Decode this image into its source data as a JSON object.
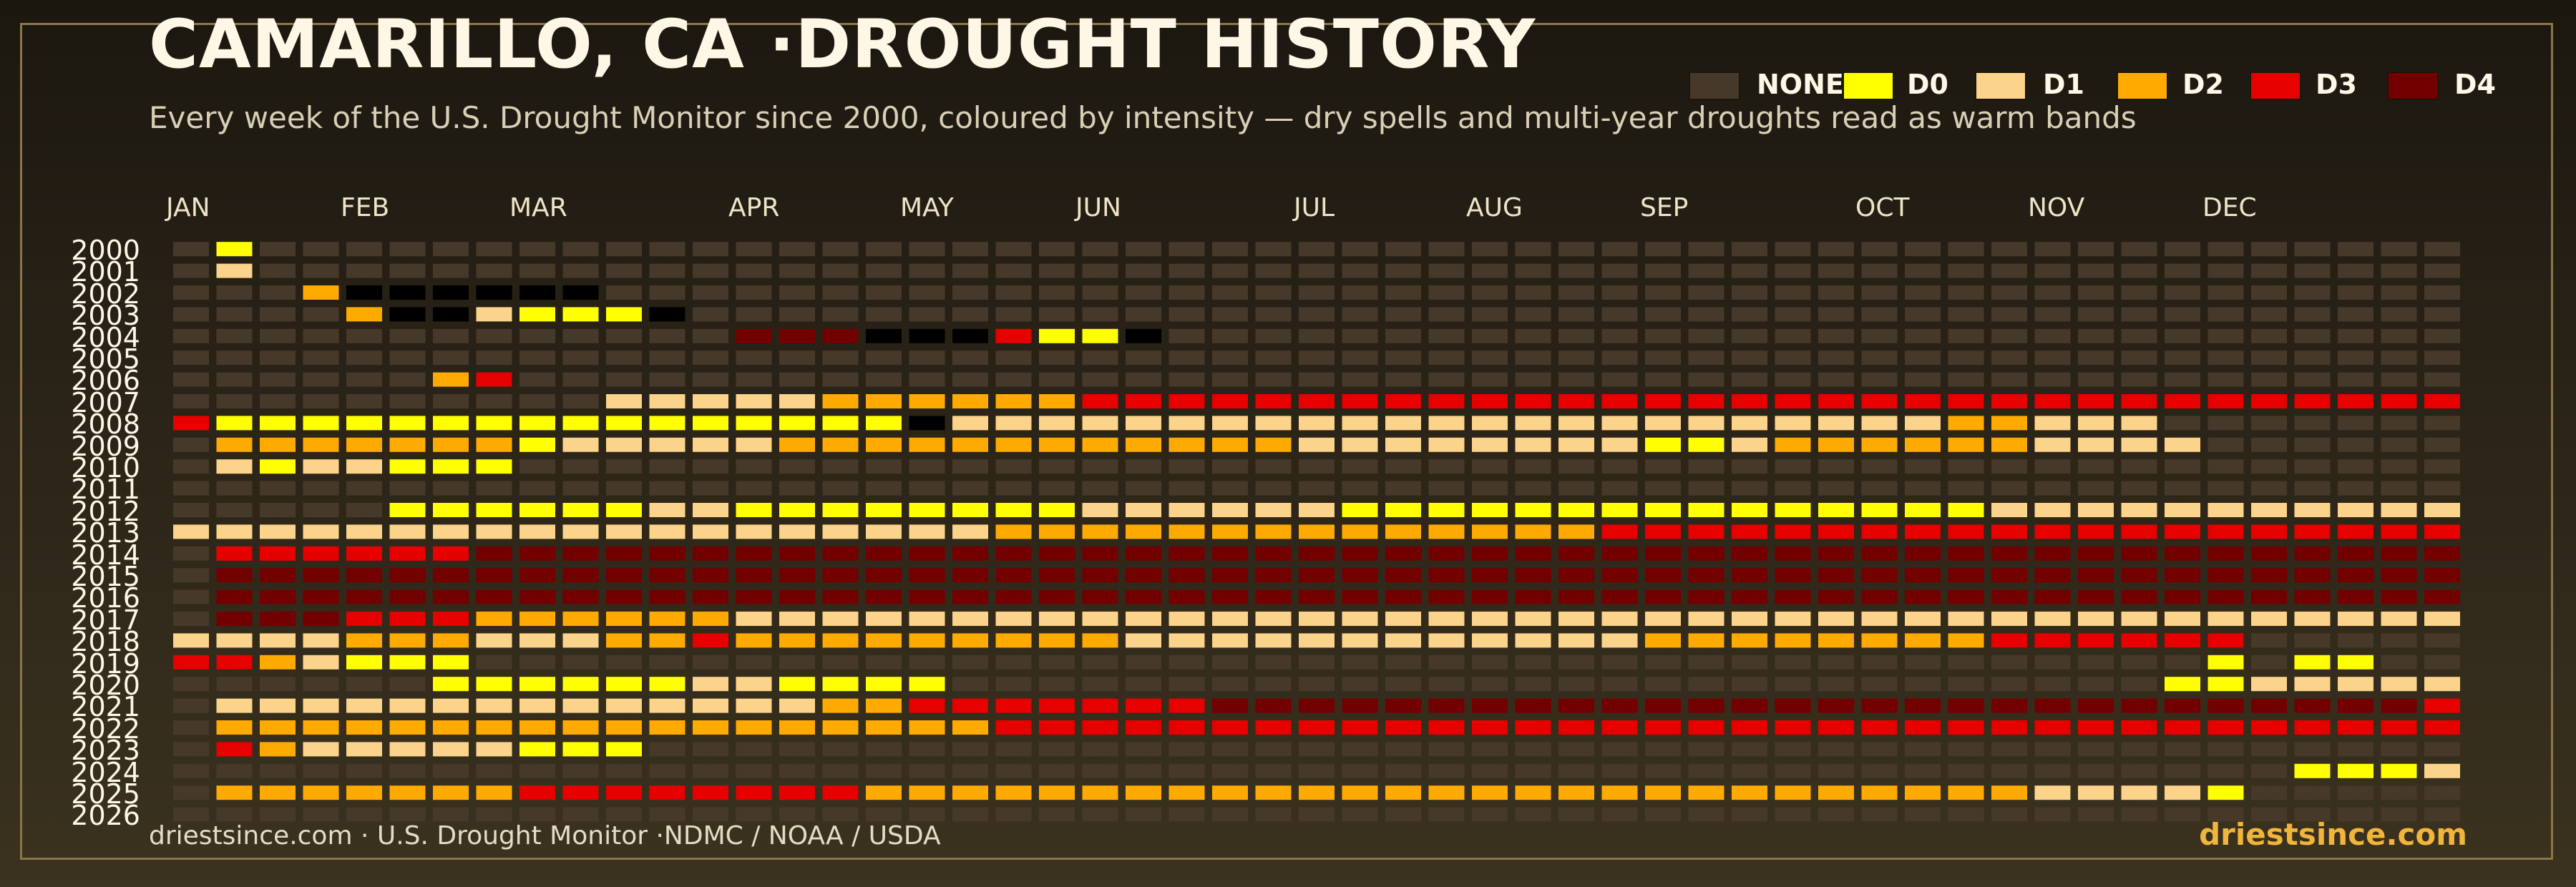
{
  "title": "CAMARILLO, CA ·DROUGHT HISTORY",
  "subtitle": "Every week of the U.S. Drought Monitor since 2000, coloured by intensity — dry spells and multi-year droughts read as warm bands",
  "footer_left": "driestsince.com  · U.S. Drought Monitor ·NDMC / NOAA / USDA",
  "footer_right": "driestsince.com",
  "legend": [
    {
      "label": "NONE",
      "color": "#46392a"
    },
    {
      "label": "D0",
      "color": "#ffff00"
    },
    {
      "label": "D1",
      "color": "#fcd38a"
    },
    {
      "label": "D2",
      "color": "#ffaa00"
    },
    {
      "label": "D3",
      "color": "#e60000"
    },
    {
      "label": "D4",
      "color": "#730000"
    }
  ],
  "chart_data": {
    "type": "heatmap",
    "title": "CAMARILLO, CA ·DROUGHT HISTORY",
    "x_months": [
      "JAN",
      "FEB",
      "MAR",
      "APR",
      "MAY",
      "JUN",
      "JUL",
      "AUG",
      "SEP",
      "OCT",
      "NOV",
      "DEC"
    ],
    "weeks_per_year": 53,
    "y_years": [
      "2000",
      "2001",
      "2002",
      "2003",
      "2004",
      "2005",
      "2006",
      "2007",
      "2008",
      "2009",
      "2010",
      "2011",
      "2012",
      "2013",
      "2014",
      "2015",
      "2016",
      "2017",
      "2018",
      "2019",
      "2020",
      "2021",
      "2022",
      "2023",
      "2024",
      "2025",
      "2026"
    ],
    "categories": [
      "NONE",
      "D0",
      "D1",
      "D2",
      "D3",
      "D4"
    ],
    "rows": [
      {
        "year": "2000",
        "runs": [
          [
            0,
            1
          ],
          [
            1,
            1
          ],
          [
            9,
            0
          ]
        ]
      },
      {
        "year": "2001",
        "runs": [
          [
            0,
            1
          ],
          [
            2,
            1
          ]
        ]
      },
      {
        "year": "2002",
        "runs": [
          [
            0,
            3
          ],
          [
            3,
            1
          ],
          [
            22,
            2
          ],
          [
            8,
            3
          ],
          [
            6,
            1
          ],
          [
            5,
            0
          ],
          [
            1,
            0
          ]
        ]
      },
      {
        "year": "2003",
        "runs": [
          [
            0,
            4
          ],
          [
            3,
            1
          ],
          [
            3,
            0
          ],
          [
            8,
            1
          ],
          [
            1,
            0
          ],
          [
            26,
            1
          ],
          [
            2,
            1
          ],
          [
            1,
            2
          ],
          [
            1,
            1
          ],
          [
            6,
            1
          ]
        ]
      },
      {
        "year": "2004",
        "runs": [
          [
            0,
            13
          ],
          [
            5,
            1
          ],
          [
            5,
            2
          ],
          [
            10,
            1
          ],
          [
            8,
            2
          ],
          [
            4,
            1
          ],
          [
            1,
            2
          ],
          [
            8,
            1
          ],
          [
            1,
            0
          ]
        ]
      },
      {
        "year": "2005",
        "runs": [
          [
            0,
            53
          ]
        ]
      },
      {
        "year": "2006",
        "runs": [
          [
            0,
            6
          ],
          [
            3,
            1
          ],
          [
            40,
            0
          ],
          [
            4,
            1
          ]
        ]
      },
      {
        "year": "2007",
        "runs": [
          [
            0,
            10
          ],
          [
            2,
            5
          ],
          [
            3,
            6
          ],
          [
            4,
            35
          ],
          [
            4
          ]
        ]
      },
      {
        "year": "2008",
        "runs": [
          [
            4,
            1
          ],
          [
            1,
            15
          ],
          [
            1,
            1
          ],
          [
            7,
            1
          ],
          [
            2,
            17
          ],
          [
            2,
            6
          ],
          [
            3,
            2
          ],
          [
            2,
            1
          ],
          [
            2
          ]
        ]
      },
      {
        "year": "2009",
        "runs": [
          [
            0,
            1
          ],
          [
            3,
            7
          ],
          [
            1,
            1
          ],
          [
            2,
            5
          ],
          [
            3,
            12
          ],
          [
            2,
            8
          ],
          [
            1,
            2
          ],
          [
            2,
            1
          ],
          [
            3,
            6
          ],
          [
            2,
            2
          ],
          [
            2,
            2
          ]
        ]
      },
      {
        "year": "2010",
        "runs": [
          [
            0,
            1
          ],
          [
            2,
            1
          ],
          [
            1,
            1
          ],
          [
            2,
            2
          ],
          [
            1,
            3
          ],
          [
            0,
            45
          ]
        ]
      },
      {
        "year": "2011",
        "runs": [
          [
            0,
            53
          ]
        ]
      },
      {
        "year": "2012",
        "runs": [
          [
            0,
            5
          ],
          [
            1,
            6
          ],
          [
            2,
            2
          ],
          [
            1,
            8
          ],
          [
            2,
            6
          ],
          [
            1,
            15
          ],
          [
            2,
            11
          ]
        ]
      },
      {
        "year": "2013",
        "runs": [
          [
            2,
            1
          ],
          [
            0,
            0
          ],
          [
            2,
            18
          ],
          [
            3,
            14
          ],
          [
            4,
            21
          ],
          [
            4,
            1
          ]
        ]
      },
      {
        "year": "2014",
        "runs": [
          [
            0,
            1
          ],
          [
            4,
            6
          ],
          [
            5,
            46
          ]
        ]
      },
      {
        "year": "2015",
        "runs": [
          [
            0,
            1
          ],
          [
            5,
            52
          ]
        ]
      },
      {
        "year": "2016",
        "runs": [
          [
            0,
            1
          ],
          [
            5,
            52
          ]
        ]
      },
      {
        "year": "2017",
        "runs": [
          [
            0,
            1
          ],
          [
            5,
            3
          ],
          [
            4,
            3
          ],
          [
            3,
            6
          ],
          [
            2,
            40
          ]
        ]
      },
      {
        "year": "2018",
        "runs": [
          [
            2,
            4
          ],
          [
            3,
            3
          ],
          [
            2,
            3
          ],
          [
            3,
            2
          ],
          [
            4,
            1
          ],
          [
            3,
            9
          ],
          [
            2,
            12
          ],
          [
            3,
            8
          ],
          [
            4,
            6
          ],
          [
            0,
            1
          ],
          [
            2
          ]
        ]
      },
      {
        "year": "2019",
        "runs": [
          [
            4,
            2
          ],
          [
            3,
            1
          ],
          [
            2,
            1
          ],
          [
            1,
            3
          ],
          [
            0,
            40
          ],
          [
            1,
            1
          ],
          [
            0,
            1
          ],
          [
            1,
            2
          ],
          [
            0,
            4
          ]
        ]
      },
      {
        "year": "2020",
        "runs": [
          [
            0,
            6
          ],
          [
            1,
            6
          ],
          [
            2,
            2
          ],
          [
            1,
            4
          ],
          [
            0,
            28
          ],
          [
            1,
            2
          ],
          [
            2,
            5
          ]
        ]
      },
      {
        "year": "2021",
        "runs": [
          [
            0,
            1
          ],
          [
            2,
            14
          ],
          [
            3,
            2
          ],
          [
            4,
            7
          ],
          [
            5,
            28
          ],
          [
            4,
            1
          ]
        ]
      },
      {
        "year": "2022",
        "runs": [
          [
            0,
            1
          ],
          [
            3,
            18
          ],
          [
            4,
            34
          ]
        ]
      },
      {
        "year": "2023",
        "runs": [
          [
            0,
            1
          ],
          [
            4,
            1
          ],
          [
            3,
            1
          ],
          [
            2,
            5
          ],
          [
            1,
            3
          ],
          [
            0,
            42
          ]
        ]
      },
      {
        "year": "2024",
        "runs": [
          [
            0,
            49
          ],
          [
            1,
            3
          ],
          [
            2,
            1
          ]
        ]
      },
      {
        "year": "2025",
        "runs": [
          [
            0,
            1
          ],
          [
            3,
            7
          ],
          [
            4,
            8
          ],
          [
            3,
            27
          ],
          [
            2,
            4
          ],
          [
            1,
            1
          ],
          [
            0,
            5
          ]
        ]
      },
      {
        "year": "2026",
        "runs": [
          [
            0,
            53
          ]
        ]
      }
    ]
  }
}
